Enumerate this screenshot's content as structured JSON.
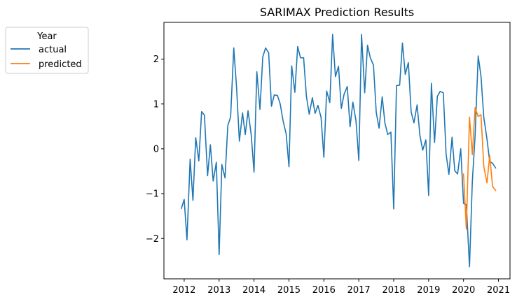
{
  "chart_data": {
    "type": "line",
    "title": "SARIMAX Prediction Results",
    "xlabel": "",
    "ylabel": "",
    "xlim": [
      2011.42,
      2021.33
    ],
    "ylim": [
      -2.9,
      2.82
    ],
    "x_ticks": [
      2012,
      2013,
      2014,
      2015,
      2016,
      2017,
      2018,
      2019,
      2020,
      2021
    ],
    "x_tick_labels": [
      "2012",
      "2013",
      "2014",
      "2015",
      "2016",
      "2017",
      "2018",
      "2019",
      "2020",
      "2021"
    ],
    "y_ticks": [
      -2,
      -1,
      0,
      1,
      2
    ],
    "y_tick_labels": [
      "−2",
      "−1",
      "0",
      "1",
      "2"
    ],
    "grid": false,
    "legend": {
      "title": "Year",
      "placement": "outside-upper-left"
    },
    "series": [
      {
        "name": "actual",
        "color": "#1f77b4",
        "x": [
          2011.92,
          2012.0,
          2012.08,
          2012.17,
          2012.25,
          2012.33,
          2012.42,
          2012.5,
          2012.58,
          2012.67,
          2012.75,
          2012.83,
          2012.92,
          2013.0,
          2013.08,
          2013.17,
          2013.25,
          2013.33,
          2013.42,
          2013.5,
          2013.58,
          2013.67,
          2013.75,
          2013.83,
          2013.92,
          2014.0,
          2014.08,
          2014.17,
          2014.25,
          2014.33,
          2014.42,
          2014.5,
          2014.58,
          2014.67,
          2014.75,
          2014.83,
          2014.92,
          2015.0,
          2015.08,
          2015.17,
          2015.25,
          2015.33,
          2015.42,
          2015.5,
          2015.58,
          2015.67,
          2015.75,
          2015.83,
          2015.92,
          2016.0,
          2016.08,
          2016.17,
          2016.25,
          2016.33,
          2016.42,
          2016.5,
          2016.58,
          2016.67,
          2016.75,
          2016.83,
          2016.92,
          2017.0,
          2017.08,
          2017.17,
          2017.25,
          2017.33,
          2017.42,
          2017.5,
          2017.58,
          2017.67,
          2017.75,
          2017.83,
          2017.92,
          2018.0,
          2018.08,
          2018.17,
          2018.25,
          2018.33,
          2018.42,
          2018.5,
          2018.58,
          2018.67,
          2018.75,
          2018.83,
          2018.92,
          2019.0,
          2019.08,
          2019.17,
          2019.25,
          2019.33,
          2019.42,
          2019.5,
          2019.58,
          2019.67,
          2019.75,
          2019.83,
          2019.92,
          2020.0,
          2020.08,
          2020.17,
          2020.25,
          2020.33,
          2020.42,
          2020.5,
          2020.58,
          2020.67,
          2020.75,
          2020.83,
          2020.92
        ],
        "y": [
          -1.33,
          -1.13,
          -2.03,
          -0.23,
          -1.15,
          0.25,
          -0.27,
          0.83,
          0.75,
          -0.6,
          0.09,
          -0.72,
          -0.3,
          -2.36,
          -0.35,
          -0.65,
          0.52,
          0.71,
          2.25,
          1.37,
          0.17,
          0.8,
          0.32,
          0.85,
          0.31,
          -0.52,
          1.72,
          0.88,
          2.05,
          2.25,
          2.14,
          0.95,
          1.2,
          1.19,
          1.0,
          0.63,
          0.33,
          -0.4,
          1.85,
          1.26,
          2.28,
          2.03,
          2.03,
          1.17,
          0.77,
          1.14,
          0.79,
          0.97,
          0.7,
          -0.19,
          1.29,
          1.03,
          2.55,
          1.61,
          1.84,
          0.9,
          1.22,
          1.39,
          0.49,
          1.04,
          0.62,
          -0.26,
          2.55,
          1.25,
          2.31,
          2.03,
          1.87,
          0.81,
          0.46,
          1.16,
          0.57,
          0.32,
          0.37,
          -1.34,
          1.41,
          1.42,
          2.36,
          1.66,
          1.92,
          0.82,
          0.58,
          0.98,
          0.3,
          -0.03,
          0.2,
          -1.04,
          1.46,
          0.14,
          1.17,
          1.28,
          1.25,
          -0.12,
          -0.57,
          0.26,
          -0.49,
          -0.56,
          0.0,
          -1.22,
          -1.25,
          -2.63,
          -0.74,
          0.29,
          2.07,
          1.62,
          0.7,
          0.22,
          -0.29,
          -0.32,
          -0.43
        ]
      },
      {
        "name": "predicted",
        "color": "#ff7f0e",
        "x": [
          2020.0,
          2020.08,
          2020.17,
          2020.25,
          2020.33,
          2020.42,
          2020.5,
          2020.58,
          2020.67,
          2020.75,
          2020.83,
          2020.92
        ],
        "y": [
          -0.56,
          -1.79,
          0.71,
          -0.13,
          0.92,
          0.72,
          0.76,
          -0.39,
          -0.76,
          -0.15,
          -0.84,
          -0.93
        ]
      }
    ]
  }
}
